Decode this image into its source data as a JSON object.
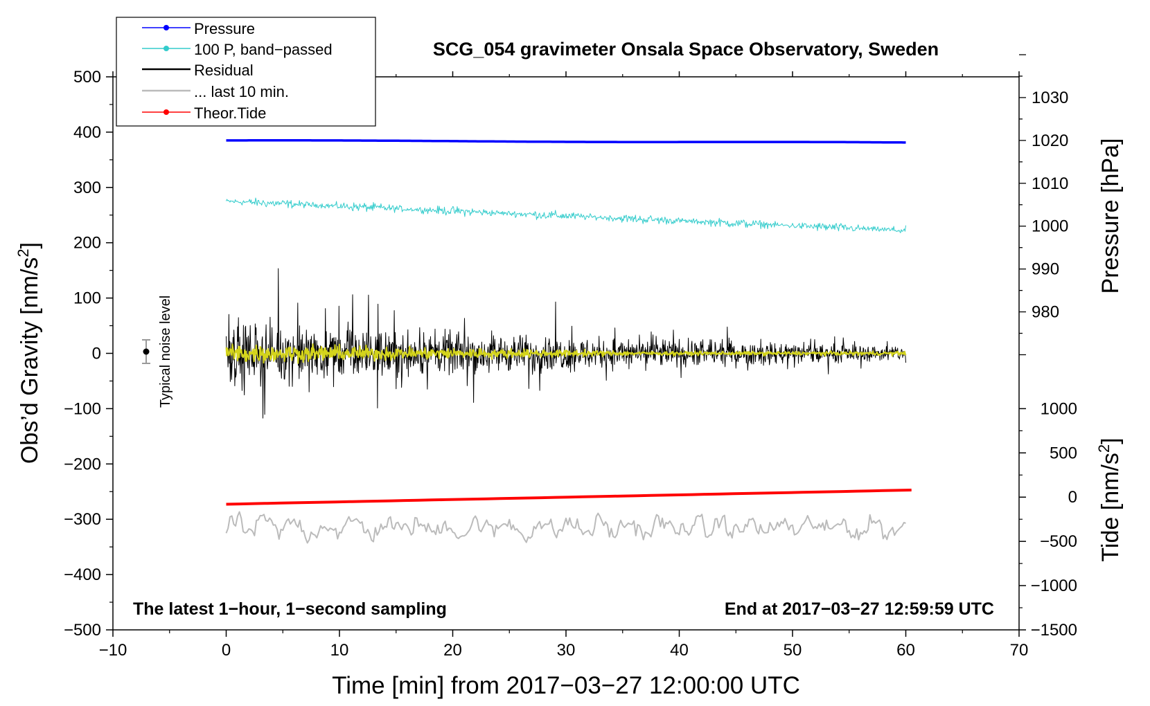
{
  "chart_data": {
    "type": "line",
    "title": "SCG_054 gravimeter Onsala Space Observatory, Sweden",
    "xlabel": "Time [min] from 2017−03−27 12:00:00 UTC",
    "ylabel_main": "Obs’d Gravity [nm/s",
    "ylabel_sup": "2",
    "ylabel_close": "]",
    "y2label": "Pressure [hPa]",
    "y3label_main": "Tide [nm/s",
    "y3label_sup": "2",
    "y3label_close": "]",
    "xlim": [
      -10,
      70
    ],
    "ylim": [
      -500,
      500
    ],
    "x_ticks": [
      -10,
      0,
      10,
      20,
      30,
      40,
      50,
      60,
      70
    ],
    "x_tick_labels": [
      "−10",
      "0",
      "10",
      "20",
      "30",
      "40",
      "50",
      "60",
      "70"
    ],
    "y_ticks": [
      -500,
      -400,
      -300,
      -200,
      -100,
      0,
      100,
      200,
      300,
      400,
      500
    ],
    "y_tick_labels": [
      "−500",
      "−400",
      "−300",
      "−200",
      "−100",
      "0",
      "100",
      "200",
      "300",
      "400",
      "500"
    ],
    "pressure_axis": {
      "ticks": [
        980,
        990,
        1000,
        1010,
        1020,
        1030
      ],
      "tick_labels": [
        "980",
        "990",
        "1000",
        "1010",
        "1020",
        "1030"
      ],
      "label_range": [
        980,
        1030
      ],
      "tick_range": [
        970,
        1040
      ],
      "maps_to_gravity": {
        "hpa": [
          1000,
          1020
        ],
        "gravity": [
          230,
          385
        ]
      }
    },
    "tide_axis": {
      "ticks": [
        -1500,
        -1000,
        -500,
        0,
        500,
        1000
      ],
      "tick_labels": [
        "−1500",
        "−1000",
        "−500",
        "0",
        "500",
        "1000"
      ],
      "maps_to_gravity": {
        "tide": [
          -1500,
          1000
        ],
        "gravity": [
          -500,
          -100
        ]
      }
    },
    "series": [
      {
        "name": "Pressure",
        "color": "#0000ff",
        "marker": true,
        "x_range": [
          0,
          60
        ],
        "start": 385,
        "end": 381,
        "amplitude": 0.6
      },
      {
        "name": "100 P, band−passed",
        "color": "#33cccc",
        "marker": true,
        "x_range": [
          0,
          60
        ],
        "start": 275,
        "end": 222,
        "amplitude": 10
      },
      {
        "name": "Residual",
        "color": "#000000",
        "marker": false,
        "x_range": [
          0,
          60
        ],
        "amplitude_start": 140,
        "amplitude_end": 30
      },
      {
        "name": "... last 10 min.",
        "color": "#bbbbbb",
        "marker": false,
        "x_range": [
          0,
          60
        ],
        "center": -315,
        "amplitude": 28
      },
      {
        "name": "Theor.Tide",
        "color": "#ff0000",
        "marker": true,
        "x_range": [
          0,
          60.5
        ],
        "tide_start": -80,
        "tide_end": 80
      },
      {
        "name": "",
        "color": "#d4d41c",
        "marker": false,
        "x_range": [
          0,
          60
        ],
        "amplitude_start": 25,
        "amplitude_end": 5
      }
    ],
    "legend_position": "top-left",
    "annotations": {
      "noise_label": "Typical noise level",
      "noise_bar": {
        "x": -7,
        "y": 0,
        "error": 20
      },
      "bottom_left": "The latest 1−hour, 1−second sampling",
      "bottom_right": "End at 2017−03−27 12:59:59 UTC"
    }
  }
}
